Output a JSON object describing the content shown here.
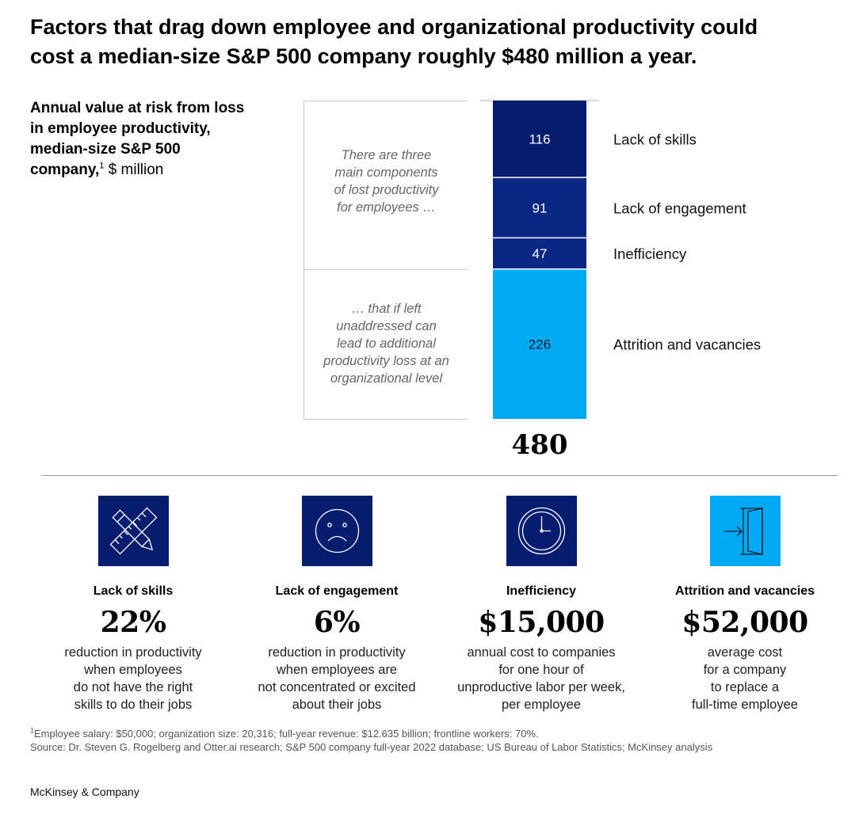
{
  "title": {
    "line1": "Factors that drag down employee and organizational productivity could",
    "line2": "cost a median-size S&P 500 company roughly $480 million a year."
  },
  "subtitle": {
    "line1": "Annual value at risk from loss",
    "line2": "in employee productivity,",
    "line3": "median-size S&P 500",
    "line4_bold": "company,",
    "footnote_marker": "1",
    "unit": " $ million"
  },
  "notes": {
    "top": [
      "There are three",
      "main components",
      "of lost productivity",
      "for employees …"
    ],
    "bottom": [
      "… that if left",
      "unaddressed can",
      "lead to additional",
      "productivity loss at an",
      "organizational level"
    ]
  },
  "chart_data": {
    "type": "bar",
    "stacked": true,
    "title": "Annual value at risk from loss in employee productivity, median-size S&P 500 company, $ million",
    "categories": [
      "Lack of skills",
      "Lack of engagement",
      "Inefficiency",
      "Attrition and vacancies"
    ],
    "values": [
      116,
      91,
      47,
      226
    ],
    "value_labels": [
      "116",
      "91",
      "47",
      "226"
    ],
    "colors": [
      "#051c6f",
      "#0a2883",
      "#0a2883",
      "#00a9f4"
    ],
    "label_colors": [
      "#ffffff",
      "#ffffff",
      "#ffffff",
      "#051c2c"
    ],
    "total": 480,
    "total_label": "480",
    "ylim": [
      0,
      480
    ]
  },
  "cards": [
    {
      "icon": "ruler-pencil-icon",
      "icon_bg": "#051c6f",
      "label": "Lack of skills",
      "stat": "22%",
      "desc": [
        "reduction in productivity",
        "when employees",
        "do not have the right",
        "skills to do their jobs"
      ]
    },
    {
      "icon": "sad-face-icon",
      "icon_bg": "#051c6f",
      "label": "Lack of engagement",
      "stat": "6%",
      "desc": [
        "reduction in productivity",
        "when employees are",
        "not concentrated or excited",
        "about their jobs"
      ]
    },
    {
      "icon": "clock-icon",
      "icon_bg": "#051c6f",
      "label": "Inefficiency",
      "stat": "$15,000",
      "desc": [
        "annual cost to companies",
        "for one hour of",
        "unproductive labor per week,",
        "per employee"
      ]
    },
    {
      "icon": "exit-door-icon",
      "icon_bg": "#00a9f4",
      "label": "Attrition and vacancies",
      "stat": "$52,000",
      "desc": [
        "average cost",
        "for a company",
        "to replace a",
        "full-time employee"
      ]
    }
  ],
  "footnote": {
    "marker": "1",
    "line1": "Employee salary: $50,000; organization size: 20,316; full-year revenue: $12.635 billion; frontline workers: 70%.",
    "line2": " Source: Dr. Steven G. Rogelberg and Otter.ai research; S&P 500 company full-year 2022 database; US Bureau of Labor Statistics; McKinsey analysis"
  },
  "brand": "McKinsey & Company"
}
